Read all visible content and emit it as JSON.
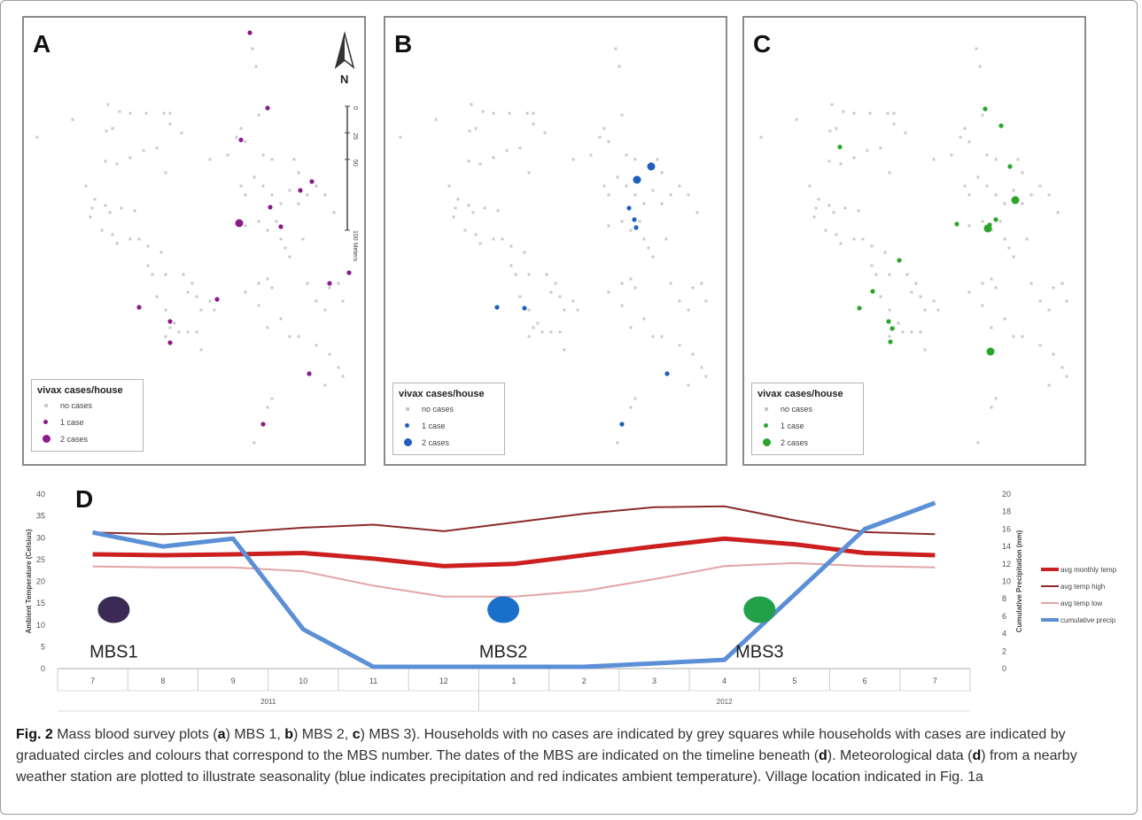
{
  "panels": [
    {
      "label": "A",
      "legend": {
        "title": "vivax cases/house",
        "no_cases": "no cases",
        "one_case": "1 case",
        "two_cases": "2 cases"
      },
      "color": "#8b1a8b"
    },
    {
      "label": "B",
      "legend": {
        "title": "vivax cases/house",
        "no_cases": "no cases",
        "one_case": "1 case",
        "two_cases": "2 cases"
      },
      "color": "#1f5fbf"
    },
    {
      "label": "C",
      "legend": {
        "title": "vivax cases/house",
        "no_cases": "no cases",
        "one_case": "1 case",
        "two_cases": "2 cases"
      },
      "color": "#2aa52a"
    }
  ],
  "map_extras": {
    "north": "N",
    "scale_ticks": [
      "0",
      "25",
      "50",
      "100 Meters"
    ]
  },
  "colors": {
    "house_gray": "#c8c8c8",
    "avg_temp": "#cc1f1f",
    "temp_high": "#8b2a2a",
    "temp_low": "#e3a5a5",
    "precip": "#5b8fd6"
  },
  "chart_data": {
    "type": "line",
    "panel_label": "D",
    "categories": [
      "7",
      "8",
      "9",
      "10",
      "11",
      "12",
      "1",
      "2",
      "3",
      "4",
      "5",
      "6",
      "7"
    ],
    "years": [
      {
        "label": "2011",
        "from_index": 0,
        "to_index": 5
      },
      {
        "label": "2012",
        "from_index": 6,
        "to_index": 12
      }
    ],
    "ylabel": "Ambient Temperature (Celsius)",
    "ylabel_right": "Cumulative Precipitation (mm)",
    "ylim": [
      0,
      40
    ],
    "yticks": [
      0,
      5,
      10,
      15,
      20,
      25,
      30,
      35,
      40
    ],
    "ylim_right": [
      0,
      20
    ],
    "yticks_right": [
      0,
      2,
      4,
      6,
      8,
      10,
      12,
      14,
      16,
      18,
      20
    ],
    "series": [
      {
        "name": "avg monthly temp",
        "axis": "left",
        "color": "#cc1f1f",
        "width": 5,
        "values": [
          26.2,
          26.0,
          26.2,
          26.5,
          25.2,
          23.5,
          24.0,
          26.0,
          28.0,
          29.8,
          28.5,
          26.5,
          26.0
        ]
      },
      {
        "name": "avg temp high",
        "axis": "left",
        "color": "#8b2a2a",
        "width": 2,
        "values": [
          31.2,
          30.8,
          31.2,
          32.3,
          33.0,
          31.5,
          33.5,
          35.5,
          37.0,
          37.2,
          34.0,
          31.3,
          30.8
        ]
      },
      {
        "name": "avg temp low",
        "axis": "left",
        "color": "#e3a5a5",
        "width": 2,
        "values": [
          23.4,
          23.2,
          23.2,
          22.3,
          19.0,
          16.5,
          16.5,
          17.8,
          20.5,
          23.5,
          24.2,
          23.5,
          23.2
        ]
      },
      {
        "name": "cumulative precip",
        "axis": "right",
        "color": "#5b8fd6",
        "width": 5,
        "values": [
          15.6,
          14.0,
          14.9,
          4.5,
          0.2,
          0.2,
          0.2,
          0.2,
          0.6,
          1.0,
          8.5,
          16.0,
          19.0
        ]
      }
    ],
    "markers": [
      {
        "label": "MBS1",
        "x": 0.3,
        "color": "#3a2a55"
      },
      {
        "label": "MBS2",
        "x": 5.85,
        "color": "#1a6fc8"
      },
      {
        "label": "MBS3",
        "x": 9.5,
        "color": "#22a04a"
      }
    ],
    "legend_position": "right"
  },
  "caption": {
    "fig": "Fig. 2",
    "t1": " Mass blood survey plots (",
    "a": "a",
    "t2": ") MBS 1, ",
    "b": "b",
    "t3": ") MBS 2, ",
    "c": "c",
    "t4": ") MBS 3). Households with no cases are indicated by grey squares while households with cases are indicated by graduated circles and colours that correspond to the MBS number. The dates of the MBS are indicated on the timeline beneath (",
    "d1": "d",
    "t5": "). Meteorological data (",
    "d2": "d",
    "t6": ") from a nearby weather station are plotted to illustrate seasonality (blue indicates precipitation and red indicates ambient temperature). Village location indicated in Fig. 1a"
  }
}
